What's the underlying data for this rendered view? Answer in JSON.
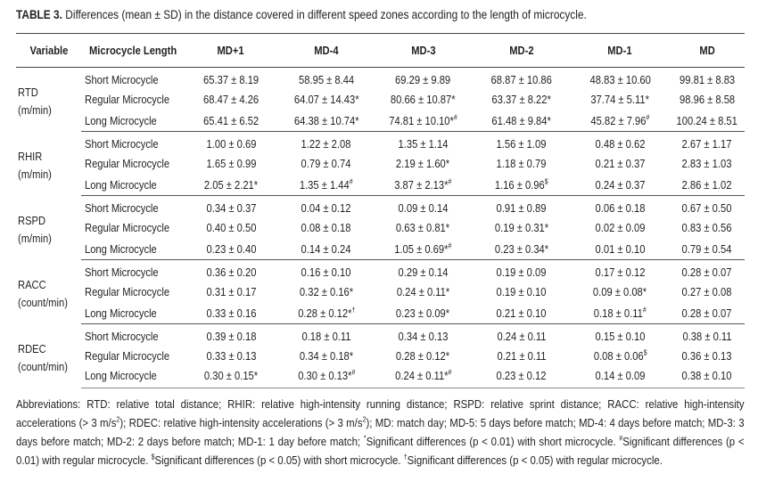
{
  "title": {
    "label": "TABLE 3.",
    "text": "Differences (mean ± SD) in the distance covered in different speed zones according to the length of microcycle."
  },
  "headers": [
    "Variable",
    "Microcycle Length",
    "MD+1",
    "MD-4",
    "MD-3",
    "MD-2",
    "MD-1",
    "MD"
  ],
  "groups": [
    {
      "name": "RTD",
      "unit": "(m/min)",
      "rows": [
        {
          "length": "Short Microcycle",
          "cells": [
            {
              "v": "65.37 ± 8.19",
              "s": ""
            },
            {
              "v": "58.95 ± 8.44",
              "s": ""
            },
            {
              "v": "69.29 ± 9.89",
              "s": ""
            },
            {
              "v": "68.87 ± 10.86",
              "s": ""
            },
            {
              "v": "48.83 ± 10.60",
              "s": ""
            },
            {
              "v": "99.81 ± 8.83",
              "s": ""
            }
          ]
        },
        {
          "length": "Regular Microcycle",
          "cells": [
            {
              "v": "68.47 ± 4.26",
              "s": ""
            },
            {
              "v": "64.07 ± 14.43*",
              "s": ""
            },
            {
              "v": "80.66 ± 10.87*",
              "s": ""
            },
            {
              "v": "63.37 ± 8.22*",
              "s": ""
            },
            {
              "v": "37.74 ± 5.11*",
              "s": ""
            },
            {
              "v": "98.96 ± 8.58",
              "s": ""
            }
          ]
        },
        {
          "length": "Long Microcycle",
          "cells": [
            {
              "v": "65.41 ± 6.52",
              "s": ""
            },
            {
              "v": "64.38 ± 10.74*",
              "s": ""
            },
            {
              "v": "74.81 ± 10.10*",
              "s": "#"
            },
            {
              "v": "61.48 ± 9.84*",
              "s": ""
            },
            {
              "v": "45.82 ± 7.96",
              "s": "#"
            },
            {
              "v": "100.24 ± 8.51",
              "s": ""
            }
          ]
        }
      ]
    },
    {
      "name": "RHIR",
      "unit": "(m/min)",
      "rows": [
        {
          "length": "Short Microcycle",
          "cells": [
            {
              "v": "1.00 ± 0.69",
              "s": ""
            },
            {
              "v": "1.22 ± 2.08",
              "s": ""
            },
            {
              "v": "1.35 ± 1.14",
              "s": ""
            },
            {
              "v": "1.56 ± 1.09",
              "s": ""
            },
            {
              "v": "0.48 ± 0.62",
              "s": ""
            },
            {
              "v": "2.67 ± 1.17",
              "s": ""
            }
          ]
        },
        {
          "length": "Regular Microcycle",
          "cells": [
            {
              "v": "1.65 ± 0.99",
              "s": ""
            },
            {
              "v": "0.79 ± 0.74",
              "s": ""
            },
            {
              "v": "2.19 ± 1.60*",
              "s": ""
            },
            {
              "v": "1.18 ± 0.79",
              "s": ""
            },
            {
              "v": "0.21 ± 0.37",
              "s": ""
            },
            {
              "v": "2.83 ± 1.03",
              "s": ""
            }
          ]
        },
        {
          "length": "Long Microcycle",
          "cells": [
            {
              "v": "2.05 ± 2.21*",
              "s": ""
            },
            {
              "v": "1.35 ± 1.44",
              "s": "#"
            },
            {
              "v": "3.87 ± 2.13*",
              "s": "#"
            },
            {
              "v": "1.16 ± 0.96",
              "s": "$"
            },
            {
              "v": "0.24 ± 0.37",
              "s": ""
            },
            {
              "v": "2.86 ± 1.02",
              "s": ""
            }
          ]
        }
      ]
    },
    {
      "name": "RSPD",
      "unit": "(m/min)",
      "rows": [
        {
          "length": "Short Microcycle",
          "cells": [
            {
              "v": "0.34 ± 0.37",
              "s": ""
            },
            {
              "v": "0.04 ± 0.12",
              "s": ""
            },
            {
              "v": "0.09 ± 0.14",
              "s": ""
            },
            {
              "v": "0.91 ± 0.89",
              "s": ""
            },
            {
              "v": "0.06 ± 0.18",
              "s": ""
            },
            {
              "v": "0.67 ± 0.50",
              "s": ""
            }
          ]
        },
        {
          "length": "Regular Microcycle",
          "cells": [
            {
              "v": "0.40 ± 0.50",
              "s": ""
            },
            {
              "v": "0.08 ± 0.18",
              "s": ""
            },
            {
              "v": "0.63 ± 0.81*",
              "s": ""
            },
            {
              "v": "0.19 ± 0.31*",
              "s": ""
            },
            {
              "v": "0.02 ± 0.09",
              "s": ""
            },
            {
              "v": "0.83 ± 0.56",
              "s": ""
            }
          ]
        },
        {
          "length": "Long Microcycle",
          "cells": [
            {
              "v": "0.23 ± 0.40",
              "s": ""
            },
            {
              "v": "0.14 ± 0.24",
              "s": ""
            },
            {
              "v": "1.05 ± 0.69*",
              "s": "#"
            },
            {
              "v": "0.23 ± 0.34*",
              "s": ""
            },
            {
              "v": "0.01 ± 0.10",
              "s": ""
            },
            {
              "v": "0.79 ± 0.54",
              "s": ""
            }
          ]
        }
      ]
    },
    {
      "name": "RACC",
      "unit": "(count/min)",
      "rows": [
        {
          "length": "Short Microcycle",
          "cells": [
            {
              "v": "0.36 ± 0.20",
              "s": ""
            },
            {
              "v": "0.16 ± 0.10",
              "s": ""
            },
            {
              "v": "0.29 ± 0.14",
              "s": ""
            },
            {
              "v": "0.19 ± 0.09",
              "s": ""
            },
            {
              "v": "0.17 ± 0.12",
              "s": ""
            },
            {
              "v": "0.28 ± 0.07",
              "s": ""
            }
          ]
        },
        {
          "length": "Regular Microcycle",
          "cells": [
            {
              "v": "0.31 ± 0.17",
              "s": ""
            },
            {
              "v": "0.32 ± 0.16*",
              "s": ""
            },
            {
              "v": "0.24 ± 0.11*",
              "s": ""
            },
            {
              "v": "0.19 ± 0.10",
              "s": ""
            },
            {
              "v": "0.09 ± 0.08*",
              "s": ""
            },
            {
              "v": "0.27 ± 0.08",
              "s": ""
            }
          ]
        },
        {
          "length": "Long Microcycle",
          "cells": [
            {
              "v": "0.33 ± 0.16",
              "s": ""
            },
            {
              "v": "0.28 ± 0.12*",
              "s": "†"
            },
            {
              "v": "0.23 ± 0.09*",
              "s": ""
            },
            {
              "v": "0.21 ± 0.10",
              "s": ""
            },
            {
              "v": "0.18 ± 0.11",
              "s": "#"
            },
            {
              "v": "0.28 ± 0.07",
              "s": ""
            }
          ]
        }
      ]
    },
    {
      "name": "RDEC",
      "unit": "(count/min)",
      "rows": [
        {
          "length": "Short Microcycle",
          "cells": [
            {
              "v": "0.39 ± 0.18",
              "s": ""
            },
            {
              "v": "0.18 ± 0.11",
              "s": ""
            },
            {
              "v": "0.34 ± 0.13",
              "s": ""
            },
            {
              "v": "0.24 ± 0.11",
              "s": ""
            },
            {
              "v": "0.15 ± 0.10",
              "s": ""
            },
            {
              "v": "0.38 ± 0.11",
              "s": ""
            }
          ]
        },
        {
          "length": "Regular Microcycle",
          "cells": [
            {
              "v": "0.33 ± 0.13",
              "s": ""
            },
            {
              "v": "0.34 ± 0.18*",
              "s": ""
            },
            {
              "v": "0.28 ± 0.12*",
              "s": ""
            },
            {
              "v": "0.21 ± 0.11",
              "s": ""
            },
            {
              "v": "0.08 ± 0.06",
              "s": "$"
            },
            {
              "v": "0.36 ± 0.13",
              "s": ""
            }
          ]
        },
        {
          "length": "Long Microcycle",
          "cells": [
            {
              "v": "0.30 ± 0.15*",
              "s": ""
            },
            {
              "v": "0.30 ± 0.13*",
              "s": "#"
            },
            {
              "v": "0.24 ± 0.11*",
              "s": "#"
            },
            {
              "v": "0.23 ± 0.12",
              "s": ""
            },
            {
              "v": "0.14 ± 0.09",
              "s": ""
            },
            {
              "v": "0.38 ± 0.10",
              "s": ""
            }
          ]
        }
      ]
    }
  ],
  "footnote": [
    {
      "t": "Abbreviations: RTD: relative total distance; RHIR: relative high-intensity running distance; RSPD: relative sprint distance; RACC: relative high-intensity accelerations (> 3 m/s"
    },
    {
      "sup": "2"
    },
    {
      "t": "); RDEC: relative high-intensity accelerations (> 3 m/s"
    },
    {
      "sup": "2"
    },
    {
      "t": "); MD: match day; MD-5: 5 days before match; MD-4: 4 days before match; MD-3: 3 days before match; MD-2: 2 days before match; MD-1: 1 day before match; "
    },
    {
      "sup": "*"
    },
    {
      "t": "Significant differences (p < 0.01) with short microcycle. "
    },
    {
      "sup": "#"
    },
    {
      "t": "Significant differences (p < 0.01) with regular microcycle. "
    },
    {
      "sup": "$"
    },
    {
      "t": "Significant differences (p < 0.05) with short microcycle. "
    },
    {
      "sup": "†"
    },
    {
      "t": "Significant differences (p < 0.05) with regular microcycle."
    }
  ]
}
